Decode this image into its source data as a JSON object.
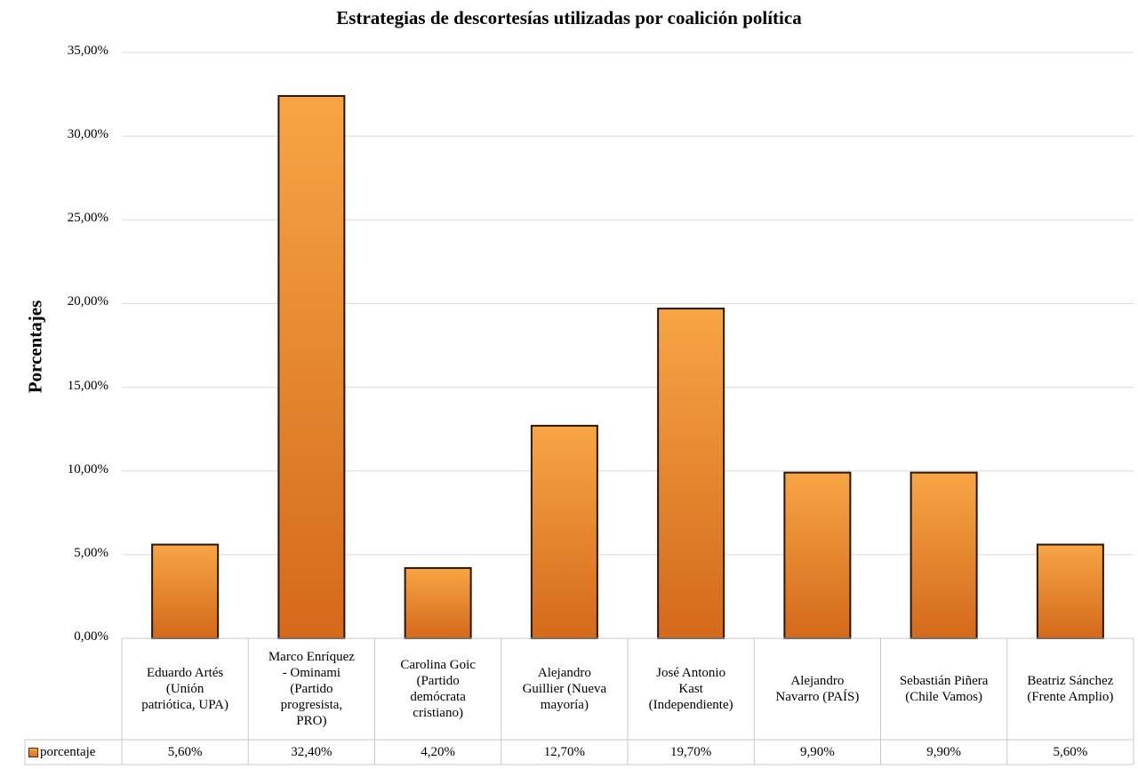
{
  "chart_data": {
    "type": "bar",
    "title": "Estrategias de descortesías utilizadas por coalición política",
    "ylabel": "Porcentajes",
    "xlabel": "",
    "ylim": [
      0,
      35
    ],
    "yticks": [
      "0,00%",
      "5,00%",
      "10,00%",
      "15,00%",
      "20,00%",
      "25,00%",
      "30,00%",
      "35,00%"
    ],
    "grid": true,
    "categories": [
      "Eduardo Artés (Unión patriótica, UPA)",
      "Marco Enríquez - Ominami (Partido progresista, PRO)",
      "Carolina Goic (Partido demócrata cristiano)",
      "Alejandro Guillier (Nueva mayoría)",
      "José Antonio Kast (Independiente)",
      "Alejandro Navarro (PAÍS)",
      "Sebastián Piñera (Chile Vamos)",
      "Beatriz Sánchez (Frente Amplio)"
    ],
    "category_lines": [
      "Eduardo Artés\n(Unión\npatriótica, UPA)",
      "Marco Enríquez\n- Ominami\n(Partido\nprogresista,\nPRO)",
      "Carolina Goic\n(Partido\ndemócrata\ncristiano)",
      "Alejandro\nGuillier (Nueva\nmayoría)",
      "José Antonio\nKast\n(Independiente)",
      "Alejandro\nNavarro (PAÍS)",
      "Sebastián Piñera\n(Chile Vamos)",
      "Beatriz Sánchez\n(Frente Amplio)"
    ],
    "series": [
      {
        "name": "porcentaje",
        "values": [
          5.6,
          32.4,
          4.2,
          12.7,
          19.7,
          9.9,
          9.9,
          5.6
        ],
        "labels": [
          "5,60%",
          "32,40%",
          "4,20%",
          "12,70%",
          "19,70%",
          "9,90%",
          "9,90%",
          "5,60%"
        ]
      }
    ],
    "data_table": true,
    "colors": {
      "bar_top": "#f7a545",
      "bar_bottom": "#d4691a",
      "bar_edge": "#2a1600",
      "grid": "#d9d9d9",
      "table": "#c8c8c8"
    }
  }
}
